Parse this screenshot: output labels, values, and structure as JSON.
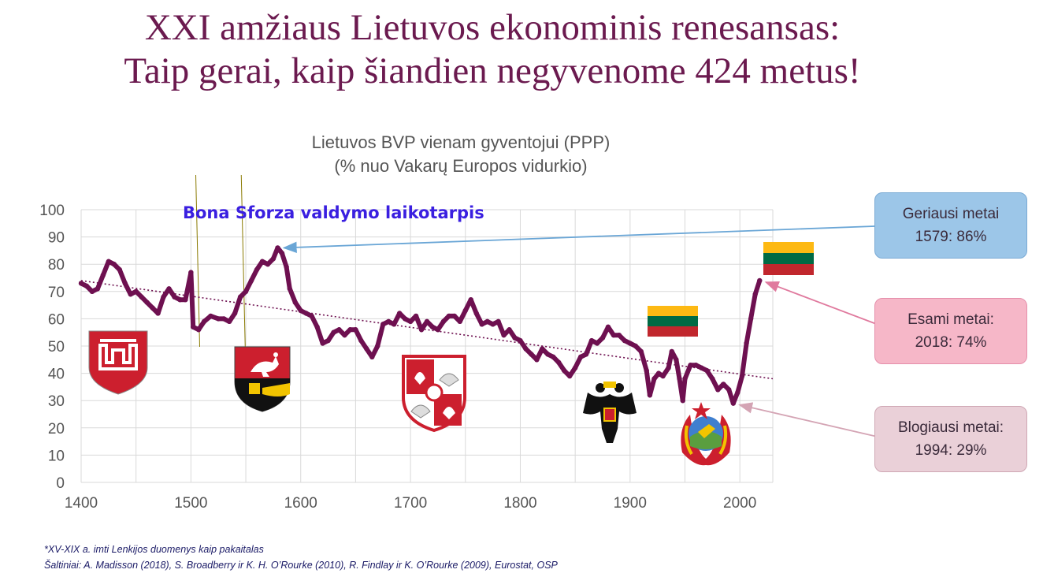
{
  "header": {
    "line1": "XXI amžiaus Lietuvos ekonominis renesansas:",
    "line2": "Taip gerai, kaip šiandien negyvenome 424 metus!"
  },
  "chart_data": {
    "type": "line",
    "title": "Lietuvos BVP vienam gyventojui (PPP)",
    "subtitle": "(% nuo Vakarų Europos vidurkio)",
    "xlabel": "",
    "ylabel": "",
    "xlim": [
      1400,
      2030
    ],
    "ylim": [
      0,
      100
    ],
    "x_ticks": [
      1400,
      1500,
      1600,
      1700,
      1800,
      1900,
      2000
    ],
    "y_ticks": [
      0,
      10,
      20,
      30,
      40,
      50,
      60,
      70,
      80,
      90,
      100
    ],
    "grid": true,
    "series": [
      {
        "color": "#6e1050",
        "points": [
          [
            1400,
            73
          ],
          [
            1405,
            72
          ],
          [
            1410,
            70
          ],
          [
            1415,
            71
          ],
          [
            1420,
            76
          ],
          [
            1425,
            81
          ],
          [
            1430,
            80
          ],
          [
            1435,
            78
          ],
          [
            1440,
            73
          ],
          [
            1445,
            69
          ],
          [
            1450,
            70
          ],
          [
            1455,
            68
          ],
          [
            1460,
            66
          ],
          [
            1465,
            64
          ],
          [
            1470,
            62
          ],
          [
            1475,
            68
          ],
          [
            1480,
            71
          ],
          [
            1485,
            68
          ],
          [
            1490,
            67
          ],
          [
            1495,
            67
          ],
          [
            1500,
            77
          ],
          [
            1502,
            57
          ],
          [
            1507,
            56
          ],
          [
            1512,
            59
          ],
          [
            1518,
            61
          ],
          [
            1525,
            60
          ],
          [
            1530,
            60
          ],
          [
            1535,
            59
          ],
          [
            1540,
            62
          ],
          [
            1545,
            68
          ],
          [
            1550,
            70
          ],
          [
            1555,
            74
          ],
          [
            1560,
            78
          ],
          [
            1565,
            81
          ],
          [
            1570,
            80
          ],
          [
            1575,
            82
          ],
          [
            1579,
            86
          ],
          [
            1583,
            84
          ],
          [
            1587,
            79
          ],
          [
            1590,
            71
          ],
          [
            1595,
            66
          ],
          [
            1600,
            63
          ],
          [
            1605,
            62
          ],
          [
            1610,
            61
          ],
          [
            1615,
            57
          ],
          [
            1620,
            51
          ],
          [
            1625,
            52
          ],
          [
            1630,
            55
          ],
          [
            1635,
            56
          ],
          [
            1640,
            54
          ],
          [
            1645,
            56
          ],
          [
            1650,
            56
          ],
          [
            1655,
            52
          ],
          [
            1660,
            49
          ],
          [
            1665,
            46
          ],
          [
            1670,
            50
          ],
          [
            1675,
            58
          ],
          [
            1680,
            59
          ],
          [
            1685,
            58
          ],
          [
            1690,
            62
          ],
          [
            1695,
            60
          ],
          [
            1700,
            59
          ],
          [
            1705,
            61
          ],
          [
            1710,
            56
          ],
          [
            1715,
            59
          ],
          [
            1720,
            57
          ],
          [
            1725,
            56
          ],
          [
            1730,
            59
          ],
          [
            1735,
            61
          ],
          [
            1740,
            61
          ],
          [
            1745,
            59
          ],
          [
            1750,
            63
          ],
          [
            1755,
            67
          ],
          [
            1760,
            62
          ],
          [
            1765,
            58
          ],
          [
            1770,
            59
          ],
          [
            1775,
            58
          ],
          [
            1780,
            59
          ],
          [
            1785,
            54
          ],
          [
            1790,
            56
          ],
          [
            1795,
            53
          ],
          [
            1800,
            52
          ],
          [
            1805,
            49
          ],
          [
            1810,
            47
          ],
          [
            1815,
            45
          ],
          [
            1820,
            49
          ],
          [
            1825,
            47
          ],
          [
            1830,
            46
          ],
          [
            1835,
            44
          ],
          [
            1840,
            41
          ],
          [
            1845,
            39
          ],
          [
            1850,
            42
          ],
          [
            1855,
            46
          ],
          [
            1860,
            47
          ],
          [
            1865,
            52
          ],
          [
            1870,
            51
          ],
          [
            1875,
            53
          ],
          [
            1880,
            57
          ],
          [
            1885,
            54
          ],
          [
            1890,
            54
          ],
          [
            1895,
            52
          ],
          [
            1900,
            51
          ],
          [
            1905,
            50
          ],
          [
            1910,
            48
          ],
          [
            1915,
            41
          ],
          [
            1918,
            32
          ],
          [
            1922,
            38
          ],
          [
            1926,
            40
          ],
          [
            1930,
            39
          ],
          [
            1935,
            42
          ],
          [
            1938,
            48
          ],
          [
            1942,
            45
          ],
          [
            1945,
            38
          ],
          [
            1948,
            30
          ],
          [
            1950,
            38
          ],
          [
            1955,
            43
          ],
          [
            1960,
            43
          ],
          [
            1965,
            42
          ],
          [
            1970,
            41
          ],
          [
            1975,
            38
          ],
          [
            1980,
            34
          ],
          [
            1985,
            36
          ],
          [
            1990,
            34
          ],
          [
            1994,
            29
          ],
          [
            1998,
            33
          ],
          [
            2002,
            39
          ],
          [
            2006,
            51
          ],
          [
            2010,
            60
          ],
          [
            2014,
            69
          ],
          [
            2018,
            74
          ]
        ]
      }
    ],
    "trendline": {
      "x": [
        1400,
        2030
      ],
      "y": [
        74,
        38
      ],
      "style": "dotted",
      "color": "#6e1050"
    },
    "vertical_lines": [
      1508,
      1548
    ],
    "annotations": [
      {
        "text": "Bona Sforza valdymo laikotarpis",
        "color": "#3a1fe0"
      },
      {
        "label": "Geriausi metai",
        "value": "1579: 86%",
        "x": 1579,
        "y": 86,
        "arrow_color": "#6aa6d6"
      },
      {
        "label": "Esami metai:",
        "value": "2018: 74%",
        "x": 2018,
        "y": 74,
        "arrow_color": "#e07a9e"
      },
      {
        "label": "Blogiausi metai:",
        "value": "1994: 29%",
        "x": 1994,
        "y": 29,
        "arrow_color": "#d4a4b4"
      }
    ],
    "emblems": [
      {
        "icon": "gediminas-columns-icon",
        "colors": [
          "#cc1f2e",
          "#ffffff"
        ]
      },
      {
        "icon": "vytis-coat-of-arms-icon",
        "colors": [
          "#cc1f2e",
          "#111111",
          "#f2c400"
        ]
      },
      {
        "icon": "commonwealth-coat-of-arms-icon",
        "colors": [
          "#cc1f2e",
          "#ffffff"
        ]
      },
      {
        "icon": "russian-empire-eagle-icon",
        "colors": [
          "#111111",
          "#f2c400"
        ]
      },
      {
        "icon": "ussr-emblem-icon",
        "colors": [
          "#cc1f2e",
          "#f2c400",
          "#3f7fcf"
        ]
      },
      {
        "icon": "lithuanian-flag-icon",
        "colors": [
          "#fdb913",
          "#006a44",
          "#c1272d"
        ]
      },
      {
        "icon": "lithuanian-flag-icon",
        "colors": [
          "#fdb913",
          "#006a44",
          "#c1272d"
        ]
      }
    ]
  },
  "footnotes": {
    "line1": "*XV-XIX a. imti Lenkijos duomenys kaip pakaitalas",
    "line2": "Šaltiniai: A. Madisson (2018), S. Broadberry ir K. H. O’Rourke (2010), R. Findlay ir K. O’Rourke (2009), Eurostat, OSP"
  }
}
